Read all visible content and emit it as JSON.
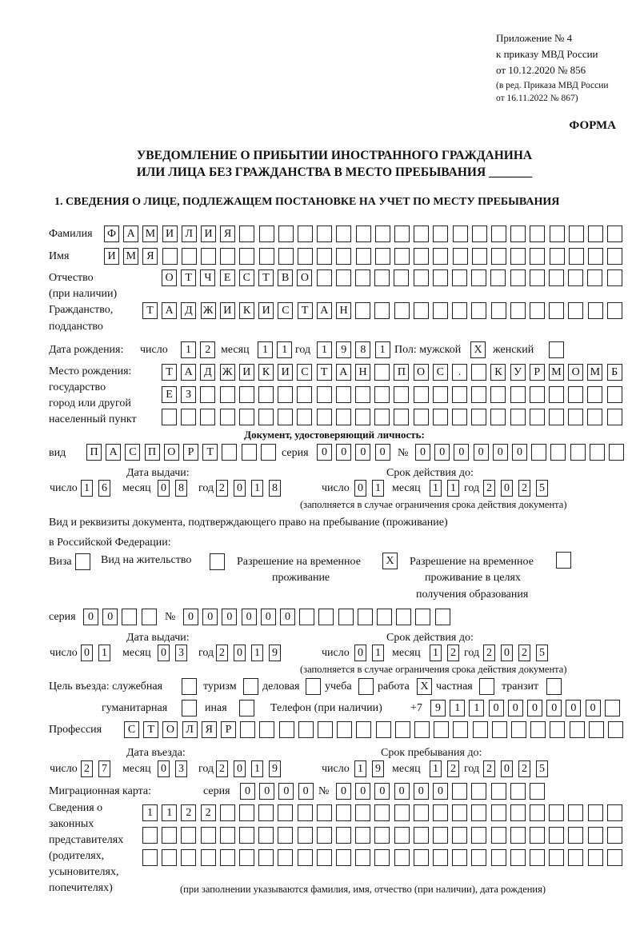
{
  "header": {
    "appendix": [
      "Приложение № 4",
      "к приказу МВД России",
      "от 10.12.2020 № 856"
    ],
    "edition": [
      "(в ред. Приказа МВД России",
      "от 16.11.2022 № 867)"
    ],
    "form_label": "ФОРМА",
    "title_line1": "УВЕДОМЛЕНИЕ О ПРИБЫТИИ ИНОСТРАННОГО ГРАЖДАНИНА",
    "title_line2": "ИЛИ ЛИЦА БЕЗ ГРАЖДАНСТВА В МЕСТО ПРЕБЫВАНИЯ _______",
    "section1": "1. СВЕДЕНИЯ О ЛИЦЕ, ПОДЛЕЖАЩЕМ ПОСТАНОВКЕ НА УЧЕТ ПО МЕСТУ ПРЕБЫВАНИЯ"
  },
  "labels": {
    "surname": "Фамилия",
    "name": "Имя",
    "patronymic": "Отчество",
    "patronymic_note": "(при наличии)",
    "citizenship": "Гражданство,",
    "citizenship2": "подданство",
    "dob": "Дата рождения:",
    "day": "число",
    "month": "месяц",
    "year": "год",
    "sex": "Пол: мужской",
    "female": "женский",
    "birthplace": [
      "Место рождения:",
      "государство",
      "город или другой",
      "населенный пункт"
    ],
    "id_doc": "Документ, удостоверяющий личность:",
    "kind": "вид",
    "series": "серия",
    "number": "№",
    "issue_date": "Дата выдачи:",
    "valid_until": "Срок действия до:",
    "valid_note": "(заполняется в случае ограничения срока действия документа)",
    "stay_doc_line1": "Вид и реквизиты документа, подтверждающего право на пребывание (проживание)",
    "stay_doc_line2": "в Российской Федерации:",
    "visa": "Виза",
    "residence": "Вид на жительство",
    "temp_res": [
      "Разрешение на временное",
      "проживание"
    ],
    "temp_res_edu": [
      "Разрешение на временное",
      "проживание в целях",
      "получения образования"
    ],
    "purpose": "Цель въезда: служебная",
    "tourism": "туризм",
    "business": "деловая",
    "study": "учеба",
    "work": "работа",
    "private": "частная",
    "transit": "транзит",
    "humanitarian": "гуманитарная",
    "other": "иная",
    "phone": "Телефон (при наличии)",
    "phone_prefix": "+7",
    "profession": "Профессия",
    "entry_date": "Дата въезда:",
    "stay_until": "Срок пребывания до:",
    "migration_card": "Миграционная карта:",
    "representatives": [
      "Сведения о",
      "законных",
      "представителях",
      "(родителях,",
      "усыновителях,",
      "попечителях)"
    ],
    "rep_note": "(при заполнении указываются фамилия, имя, отчество (при наличии), дата рождения)"
  },
  "fields": {
    "surname": "ФАМИЛИЯ",
    "name": "ИМЯ",
    "patronymic": "ОТЧЕСТВО",
    "citizenship": "ТАДЖИКИСТАН",
    "dob_day": "12",
    "dob_month": "11",
    "dob_year": "1981",
    "sex_male": "X",
    "sex_female": "",
    "birthplace_1": "ТАДЖИКИСТАН ПОС. КУРМОМБ",
    "birthplace_2": "ЕЗ",
    "birthplace_3": "",
    "doc_kind": "ПАСПОРТ",
    "doc_series": "0000",
    "doc_number": "000000",
    "doc_issue_day": "16",
    "doc_issue_month": "08",
    "doc_issue_year": "2018",
    "doc_valid_day": "01",
    "doc_valid_month": "11",
    "doc_valid_year": "2025",
    "visa": "",
    "residence": "",
    "temp_res": "X",
    "temp_res_edu": "",
    "stay_series": "00",
    "stay_number": "000000",
    "stay_issue_day": "01",
    "stay_issue_month": "03",
    "stay_issue_year": "2019",
    "stay_valid_day": "01",
    "stay_valid_month": "12",
    "stay_valid_year": "2025",
    "purpose_official": "",
    "purpose_tourism": "",
    "purpose_business": "",
    "purpose_study": "",
    "purpose_work": "X",
    "purpose_private": "",
    "purpose_transit": "",
    "purpose_humanitarian": "",
    "purpose_other": "",
    "phone": "911000000",
    "profession": "СТОЛЯР",
    "entry_day": "27",
    "entry_month": "03",
    "entry_year": "2019",
    "stay_until_day": "19",
    "stay_until_month": "12",
    "stay_until_year": "2025",
    "mig_series": "0000",
    "mig_number": "000000",
    "rep_1": "1122",
    "rep_2": "",
    "rep_3": ""
  }
}
